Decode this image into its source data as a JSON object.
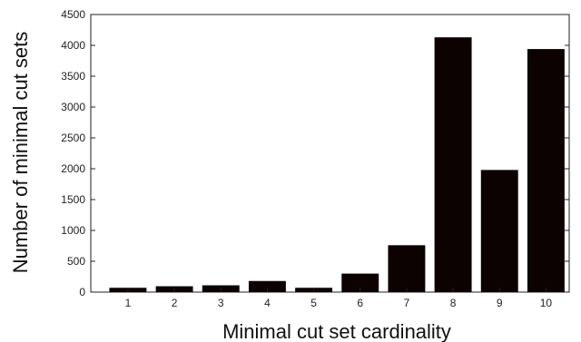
{
  "chart_data": {
    "type": "bar",
    "title": "",
    "xlabel": "Minimal cut set cardinality",
    "ylabel": "Number of minimal cut sets",
    "categories": [
      "1",
      "2",
      "3",
      "4",
      "5",
      "6",
      "7",
      "8",
      "9",
      "10"
    ],
    "values": [
      70,
      95,
      110,
      180,
      70,
      300,
      760,
      4130,
      1980,
      3940
    ],
    "ylim": [
      0,
      4500
    ],
    "yticks": [
      "0",
      "500",
      "1000",
      "1500",
      "2000",
      "2500",
      "3000",
      "3500",
      "4000",
      "4500"
    ],
    "grid": false,
    "legend": "none",
    "bar_color": "#0d0202"
  }
}
